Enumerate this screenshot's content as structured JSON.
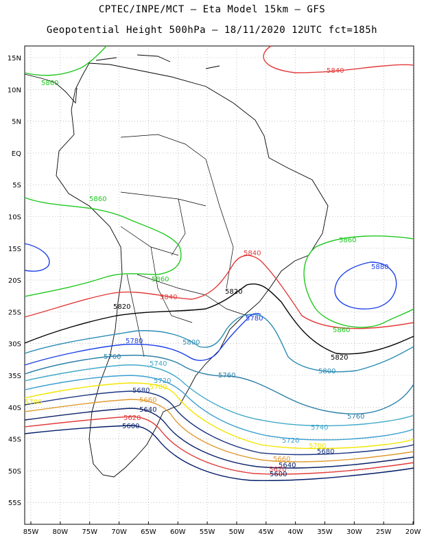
{
  "header": {
    "line1": "CPTEC/INPE/MCT –  Eta Model 15km – GFS",
    "line2": "Geopotential Height 500hPa – 18/11/2020 12UTC fct=185h"
  },
  "axes": {
    "lat_labels": [
      "15N",
      "10N",
      "5N",
      "EQ",
      "5S",
      "10S",
      "15S",
      "20S",
      "25S",
      "30S",
      "35S",
      "40S",
      "45S",
      "50S",
      "55S"
    ],
    "lon_labels": [
      "85W",
      "80W",
      "75W",
      "70W",
      "65W",
      "60W",
      "55W",
      "50W",
      "45W",
      "40W",
      "35W",
      "30W",
      "25W",
      "20W"
    ]
  },
  "colors": {
    "c5600": "#001a66",
    "c5620": "#e23a3a",
    "c5640": "#0a1f66",
    "c5660": "#e09a30",
    "c5680": "#1b3580",
    "c5700": "#f2e600",
    "c5720": "#3a9fd0",
    "c5740": "#3ea8c8",
    "c5760": "#2a7fa8",
    "c5780": "#1a3ee8",
    "c5800": "#2a8cb4",
    "c5820": "#000000",
    "c5840": "#e23a3a",
    "c5860": "#1ec81e",
    "c5880": "#1a3ee8"
  },
  "contours": [
    {
      "value": "5600",
      "color_key": "c5600"
    },
    {
      "value": "5620",
      "color_key": "c5620"
    },
    {
      "value": "5640",
      "color_key": "c5640"
    },
    {
      "value": "5660",
      "color_key": "c5660"
    },
    {
      "value": "5680",
      "color_key": "c5680"
    },
    {
      "value": "5700",
      "color_key": "c5700"
    },
    {
      "value": "5720",
      "color_key": "c5720"
    },
    {
      "value": "5740",
      "color_key": "c5740"
    },
    {
      "value": "5760",
      "color_key": "c5760"
    },
    {
      "value": "5780",
      "color_key": "c5780"
    },
    {
      "value": "5800",
      "color_key": "c5800"
    },
    {
      "value": "5820",
      "color_key": "c5820"
    },
    {
      "value": "5840",
      "color_key": "c5840"
    },
    {
      "value": "5860",
      "color_key": "c5860"
    },
    {
      "value": "5880",
      "color_key": "c5880"
    }
  ]
}
